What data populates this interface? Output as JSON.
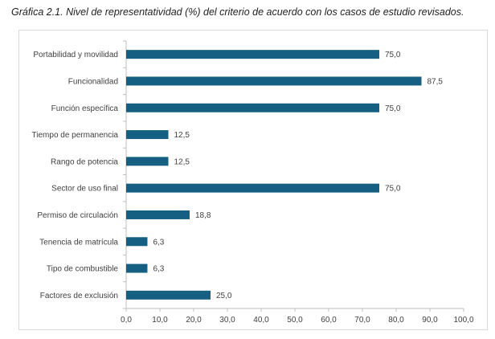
{
  "caption": "Gráfica 2.1. Nivel de representatividad (%) del criterio de acuerdo con los casos de estudio revisados.",
  "chart_data": {
    "type": "bar",
    "orientation": "horizontal",
    "categories": [
      "Portabilidad y movilidad",
      "Funcionalidad",
      "Función específica",
      "Tiempo de permanencia",
      "Rango de potencia",
      "Sector de uso final",
      "Permiso de circulación",
      "Tenencia de matrícula",
      "Tipo de combustible",
      "Factores de exclusión"
    ],
    "values": [
      75.0,
      87.5,
      75.0,
      12.5,
      12.5,
      75.0,
      18.8,
      6.3,
      6.3,
      25.0
    ],
    "value_labels": [
      "75,0",
      "87,5",
      "75,0",
      "12,5",
      "12,5",
      "75,0",
      "18,8",
      "6,3",
      "6,3",
      "25,0"
    ],
    "x_ticks": [
      "0,0",
      "10,0",
      "20,0",
      "30,0",
      "40,0",
      "50,0",
      "60,0",
      "70,0",
      "80,0",
      "90,0",
      "100,0"
    ],
    "xlim": [
      0,
      100
    ],
    "grid": false,
    "legend": "none",
    "bar_color": "#156082"
  }
}
